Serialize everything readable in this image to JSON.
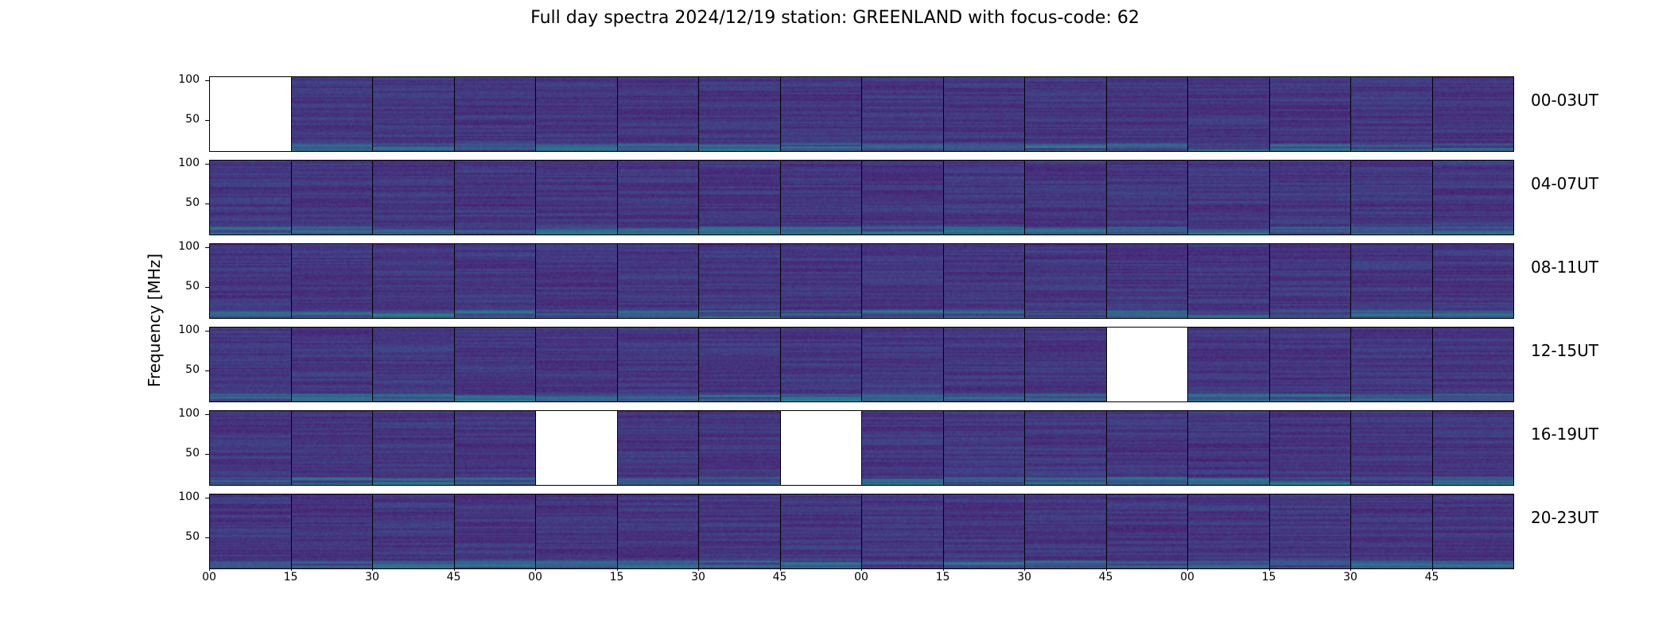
{
  "chart_data": {
    "type": "heatmap",
    "title": "Full day spectra 2024/12/19 station: GREENLAND with focus-code: 62",
    "ylabel": "Frequency [MHz]",
    "xlabel": "",
    "ylim": [
      10,
      105
    ],
    "yticks": [
      50,
      100
    ],
    "xticks": [
      "00",
      "15",
      "30",
      "45",
      "00",
      "15",
      "30",
      "45",
      "00",
      "15",
      "30",
      "45",
      "00",
      "15",
      "30",
      "45"
    ],
    "colormap": "viridis",
    "background_color": "#3b0f70",
    "rows": [
      {
        "label": "00-03UT",
        "blank_panels": [
          0
        ]
      },
      {
        "label": "04-07UT",
        "blank_panels": []
      },
      {
        "label": "08-11UT",
        "blank_panels": []
      },
      {
        "label": "12-15UT",
        "blank_panels": [
          11
        ]
      },
      {
        "label": "16-19UT",
        "blank_panels": [
          4,
          7
        ]
      },
      {
        "label": "20-23UT",
        "blank_panels": []
      }
    ]
  }
}
